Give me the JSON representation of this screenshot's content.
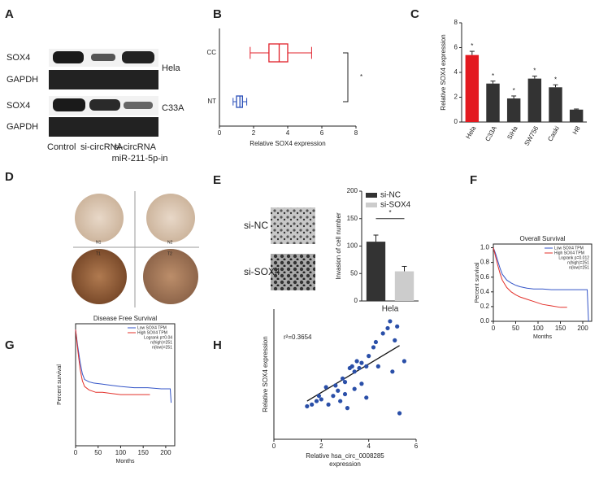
{
  "panel_letters": [
    "A",
    "B",
    "C",
    "D",
    "E",
    "F",
    "G",
    "H"
  ],
  "blot": {
    "rows": [
      "SOX4",
      "GAPDH",
      "SOX4",
      "GAPDH"
    ],
    "cells": [
      "Hela",
      "C33A"
    ],
    "lanes": [
      [
        "Control"
      ],
      [
        "si-circRNA"
      ],
      [
        "si-circRNA",
        "miR-211-5p-in"
      ]
    ]
  },
  "ihc": {
    "labels": [
      "N1",
      "N2",
      "T1",
      "T2"
    ]
  },
  "chart_data": [
    {
      "type": "box",
      "categories": [
        "CC",
        "NT"
      ],
      "boxes": [
        {
          "min": 1.8,
          "q1": 2.9,
          "median": 3.5,
          "q3": 4.0,
          "max": 5.4,
          "color": "#e0202a"
        },
        {
          "min": 0.8,
          "q1": 1.0,
          "median": 1.2,
          "q3": 1.35,
          "max": 1.6,
          "color": "#2a4fb8"
        }
      ],
      "xlim": [
        0,
        8
      ],
      "xticks": [
        0,
        2,
        4,
        6,
        8
      ],
      "xlabel": "Relative SOX4 expression",
      "annotation": "*"
    },
    {
      "type": "bar",
      "categories": [
        "Hela",
        "C33A",
        "SiHa",
        "SW756",
        "Caski",
        "H8"
      ],
      "values": [
        5.4,
        3.1,
        1.9,
        3.5,
        2.8,
        1.0
      ],
      "errors": [
        0.3,
        0.2,
        0.2,
        0.2,
        0.2,
        0.05
      ],
      "colors": [
        "#e3191f",
        "#333333",
        "#333333",
        "#333333",
        "#333333",
        "#333333"
      ],
      "significance": [
        "*",
        "*",
        "*",
        "*",
        "*",
        null
      ],
      "ylim": [
        0,
        8
      ],
      "yticks": [
        0,
        2,
        4,
        6,
        8
      ],
      "ylabel": "Relative SOX4 expression"
    },
    {
      "type": "grouped_bar",
      "categories": [
        "Hela"
      ],
      "series": [
        {
          "name": "si-NC",
          "color": "#333333",
          "values": [
            108
          ],
          "errors": [
            12
          ]
        },
        {
          "name": "si-SOX4",
          "color": "#cccccc",
          "values": [
            54
          ],
          "errors": [
            9
          ]
        }
      ],
      "ylim": [
        0,
        200
      ],
      "yticks": [
        0,
        50,
        100,
        150,
        200
      ],
      "ylabel": "Invasion of cell number",
      "annotation": "*"
    },
    {
      "type": "line",
      "title": "Overall Survival",
      "xlabel": "Months",
      "ylabel": "Percent survival",
      "stats": [
        "Logrank p=0.012",
        "n(high)=251",
        "n(low)=251"
      ],
      "series": [
        {
          "name": "Low SOX4 TPM",
          "color": "#3455c8",
          "x": [
            0,
            5,
            10,
            15,
            20,
            30,
            40,
            50,
            60,
            75,
            90,
            110,
            130,
            150,
            170,
            190,
            210,
            213
          ],
          "values": [
            1,
            0.92,
            0.82,
            0.72,
            0.64,
            0.56,
            0.52,
            0.49,
            0.47,
            0.45,
            0.44,
            0.44,
            0.43,
            0.43,
            0.43,
            0.43,
            0.43,
            0
          ]
        },
        {
          "name": "High SOX4 TPM",
          "color": "#e3302a",
          "x": [
            0,
            5,
            10,
            15,
            20,
            30,
            40,
            50,
            60,
            75,
            90,
            110,
            130,
            150,
            165
          ],
          "values": [
            1,
            0.88,
            0.76,
            0.65,
            0.56,
            0.46,
            0.4,
            0.36,
            0.33,
            0.3,
            0.27,
            0.23,
            0.21,
            0.19,
            0.19
          ]
        }
      ],
      "xlim": [
        0,
        220
      ],
      "xticks": [
        0,
        50,
        100,
        150,
        200
      ],
      "ylim": [
        0,
        1.05
      ],
      "yticks": [
        {
          "value": 0,
          "label": "0.0"
        },
        {
          "value": 0.2,
          "label": "0.2"
        },
        {
          "value": 0.4,
          "label": "0.4"
        },
        {
          "value": 0.6,
          "label": "0.6"
        },
        {
          "value": 0.8,
          "label": "0.8"
        },
        {
          "value": 1,
          "label": "1.0"
        }
      ]
    },
    {
      "type": "line",
      "title": "Disease Free Survival",
      "xlabel": "Months",
      "ylabel": "Percent survival",
      "stats": [
        "Logrank p=0.04",
        "n(high)=251",
        "n(low)=251"
      ],
      "series": [
        {
          "name": "Low SOX4 TPM",
          "color": "#3455c8",
          "x": [
            0,
            5,
            10,
            15,
            20,
            30,
            40,
            60,
            80,
            100,
            130,
            160,
            190,
            210,
            212
          ],
          "values": [
            1,
            0.85,
            0.72,
            0.62,
            0.57,
            0.55,
            0.54,
            0.53,
            0.52,
            0.51,
            0.5,
            0.5,
            0.49,
            0.49,
            0.37
          ]
        },
        {
          "name": "High SOX4 TPM",
          "color": "#e3302a",
          "x": [
            0,
            5,
            10,
            15,
            20,
            30,
            45,
            60,
            80,
            100,
            130,
            165
          ],
          "values": [
            1,
            0.82,
            0.66,
            0.56,
            0.51,
            0.48,
            0.46,
            0.46,
            0.45,
            0.44,
            0.44,
            0.44
          ]
        }
      ],
      "xlim": [
        0,
        220
      ],
      "xticks": [
        0,
        50,
        100,
        150,
        200
      ],
      "ylim": [
        0,
        1.05
      ]
    },
    {
      "type": "scatter",
      "annotation": "r²=0.3654",
      "color": "#2a4fa8",
      "xlabel": [
        "Relative hsa_circ_0008285",
        "expression"
      ],
      "ylabel": "Relative SOX4 expression",
      "x": [
        1.4,
        1.6,
        1.8,
        1.9,
        2.0,
        2.2,
        2.3,
        2.5,
        2.6,
        2.7,
        2.8,
        2.9,
        3.0,
        3.0,
        3.1,
        3.2,
        3.3,
        3.4,
        3.4,
        3.5,
        3.6,
        3.7,
        3.7,
        3.9,
        3.9,
        4.0,
        4.2,
        4.3,
        4.4,
        4.6,
        4.8,
        4.9,
        5.0,
        5.1,
        5.2,
        5.3,
        5.5
      ],
      "values": [
        1.9,
        2.0,
        2.2,
        2.5,
        2.3,
        3.0,
        2.0,
        2.5,
        3.1,
        2.8,
        2.2,
        3.5,
        3.3,
        2.6,
        1.8,
        4.1,
        4.2,
        3.9,
        2.9,
        4.5,
        4.1,
        4.4,
        3.2,
        4.2,
        2.4,
        4.8,
        5.3,
        5.6,
        4.2,
        6.1,
        6.4,
        6.8,
        3.9,
        5.7,
        6.5,
        1.5,
        4.5
      ],
      "trendline": {
        "x": [
          1.4,
          5.3
        ],
        "y": [
          2.2,
          5.4
        ]
      },
      "xlim": [
        0,
        6
      ],
      "xticks": [
        0,
        2,
        4,
        6
      ],
      "ylim": [
        0,
        7.5
      ]
    }
  ]
}
